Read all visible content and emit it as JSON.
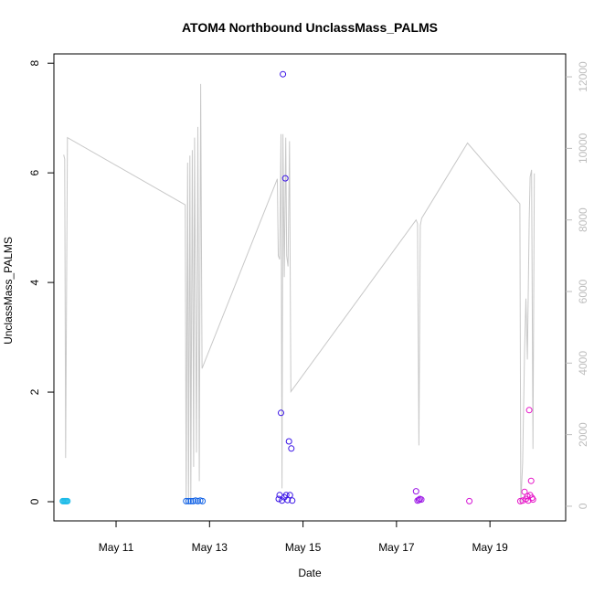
{
  "chart_data": {
    "type": "scatter",
    "title": "ATOM4 Northbound UnclassMass_PALMS",
    "xlabel": "Date",
    "ylabel": "UnclassMass_PALMS",
    "xlim": [
      9.67,
      20.62
    ],
    "ylim": [
      -0.35,
      8.17
    ],
    "y_ticks": [
      0,
      2,
      4,
      6,
      8
    ],
    "y_tick_labels": [
      "0",
      "2",
      "4",
      "6",
      "8"
    ],
    "x_ticks": [
      11,
      13,
      15,
      17,
      19
    ],
    "x_tick_labels": [
      "May 11",
      "May 13",
      "May 15",
      "May 17",
      "May 19"
    ],
    "y2lim": [
      -410,
      12640
    ],
    "y2_ticks": [
      0,
      2000,
      4000,
      6000,
      8000,
      10000,
      12000
    ],
    "y2_tick_labels": [
      "0",
      "2000",
      "4000",
      "6000",
      "8000",
      "10000",
      "12000"
    ],
    "y2_color": "#bdbdbd",
    "line_color": "#c8c8c8",
    "points": [
      {
        "x": 9.86,
        "y": 0.01,
        "color": "#1ebbe8"
      },
      {
        "x": 9.88,
        "y": 0.01,
        "color": "#1ebbe8"
      },
      {
        "x": 9.9,
        "y": 0.01,
        "color": "#1ebbe8"
      },
      {
        "x": 9.92,
        "y": 0.01,
        "color": "#1ebbe8"
      },
      {
        "x": 9.94,
        "y": 0.01,
        "color": "#1ebbe8"
      },
      {
        "x": 9.96,
        "y": 0.01,
        "color": "#1ebbe8"
      },
      {
        "x": 12.5,
        "y": 0.01,
        "color": "#1464e6"
      },
      {
        "x": 12.55,
        "y": 0.01,
        "color": "#1464e6"
      },
      {
        "x": 12.6,
        "y": 0.01,
        "color": "#1464e6"
      },
      {
        "x": 12.65,
        "y": 0.01,
        "color": "#1464e6"
      },
      {
        "x": 12.7,
        "y": 0.02,
        "color": "#1464e6"
      },
      {
        "x": 12.75,
        "y": 0.01,
        "color": "#1464e6"
      },
      {
        "x": 12.8,
        "y": 0.02,
        "color": "#1464e6"
      },
      {
        "x": 12.85,
        "y": 0.01,
        "color": "#1464e6"
      },
      {
        "x": 14.48,
        "y": 0.05,
        "color": "#3a14e6"
      },
      {
        "x": 14.5,
        "y": 0.12,
        "color": "#3a14e6"
      },
      {
        "x": 14.53,
        "y": 1.62,
        "color": "#3a14e6"
      },
      {
        "x": 14.55,
        "y": 0.02,
        "color": "#3a14e6"
      },
      {
        "x": 14.57,
        "y": 7.8,
        "color": "#3a14e6"
      },
      {
        "x": 14.6,
        "y": 0.08,
        "color": "#3a14e6"
      },
      {
        "x": 14.62,
        "y": 5.9,
        "color": "#3a14e6"
      },
      {
        "x": 14.64,
        "y": 0.12,
        "color": "#3a14e6"
      },
      {
        "x": 14.67,
        "y": 0.03,
        "color": "#3a14e6"
      },
      {
        "x": 14.7,
        "y": 1.1,
        "color": "#3a14e6"
      },
      {
        "x": 14.72,
        "y": 0.12,
        "color": "#3a14e6"
      },
      {
        "x": 14.75,
        "y": 0.97,
        "color": "#3a14e6"
      },
      {
        "x": 14.77,
        "y": 0.02,
        "color": "#3a14e6"
      },
      {
        "x": 17.42,
        "y": 0.19,
        "color": "#9a14e6"
      },
      {
        "x": 17.45,
        "y": 0.02,
        "color": "#9a14e6"
      },
      {
        "x": 17.48,
        "y": 0.03,
        "color": "#9a14e6"
      },
      {
        "x": 17.5,
        "y": 0.05,
        "color": "#9a14e6"
      },
      {
        "x": 17.53,
        "y": 0.04,
        "color": "#9a14e6"
      },
      {
        "x": 18.56,
        "y": 0.01,
        "color": "#d414d4"
      },
      {
        "x": 19.65,
        "y": 0.01,
        "color": "#e614c8"
      },
      {
        "x": 19.7,
        "y": 0.02,
        "color": "#e614c8"
      },
      {
        "x": 19.74,
        "y": 0.18,
        "color": "#e614c8"
      },
      {
        "x": 19.77,
        "y": 0.05,
        "color": "#e614c8"
      },
      {
        "x": 19.8,
        "y": 0.1,
        "color": "#e614c8"
      },
      {
        "x": 19.82,
        "y": 0.02,
        "color": "#e614c8"
      },
      {
        "x": 19.84,
        "y": 1.67,
        "color": "#e614c8"
      },
      {
        "x": 19.86,
        "y": 0.12,
        "color": "#e614c8"
      },
      {
        "x": 19.88,
        "y": 0.38,
        "color": "#e614c8"
      },
      {
        "x": 19.9,
        "y": 0.07,
        "color": "#e614c8"
      },
      {
        "x": 19.92,
        "y": 0.04,
        "color": "#e614c8"
      }
    ],
    "y2_line": [
      [
        9.88,
        9820
      ],
      [
        9.9,
        9700
      ],
      [
        9.92,
        1350
      ],
      [
        9.96,
        10300
      ],
      [
        12.48,
        8420
      ],
      [
        12.5,
        60
      ],
      [
        12.53,
        9600
      ],
      [
        12.55,
        100
      ],
      [
        12.58,
        9800
      ],
      [
        12.6,
        80
      ],
      [
        12.63,
        9950
      ],
      [
        12.66,
        1100
      ],
      [
        12.68,
        10300
      ],
      [
        12.72,
        1500
      ],
      [
        12.75,
        10600
      ],
      [
        12.78,
        700
      ],
      [
        12.81,
        11800
      ],
      [
        12.84,
        3850
      ],
      [
        14.45,
        9150
      ],
      [
        14.47,
        7000
      ],
      [
        14.5,
        6900
      ],
      [
        14.53,
        10400
      ],
      [
        14.55,
        500
      ],
      [
        14.57,
        10400
      ],
      [
        14.6,
        6400
      ],
      [
        14.63,
        10300
      ],
      [
        14.65,
        7000
      ],
      [
        14.68,
        6700
      ],
      [
        14.71,
        10200
      ],
      [
        14.74,
        3200
      ],
      [
        17.42,
        8000
      ],
      [
        17.45,
        7900
      ],
      [
        17.48,
        1700
      ],
      [
        17.51,
        7850
      ],
      [
        17.54,
        8050
      ],
      [
        18.52,
        10150
      ],
      [
        19.64,
        8450
      ],
      [
        19.66,
        60
      ],
      [
        19.7,
        1200
      ],
      [
        19.74,
        4300
      ],
      [
        19.77,
        5800
      ],
      [
        19.8,
        4100
      ],
      [
        19.84,
        8000
      ],
      [
        19.86,
        9200
      ],
      [
        19.89,
        9400
      ],
      [
        19.92,
        1600
      ],
      [
        19.95,
        9300
      ]
    ]
  }
}
